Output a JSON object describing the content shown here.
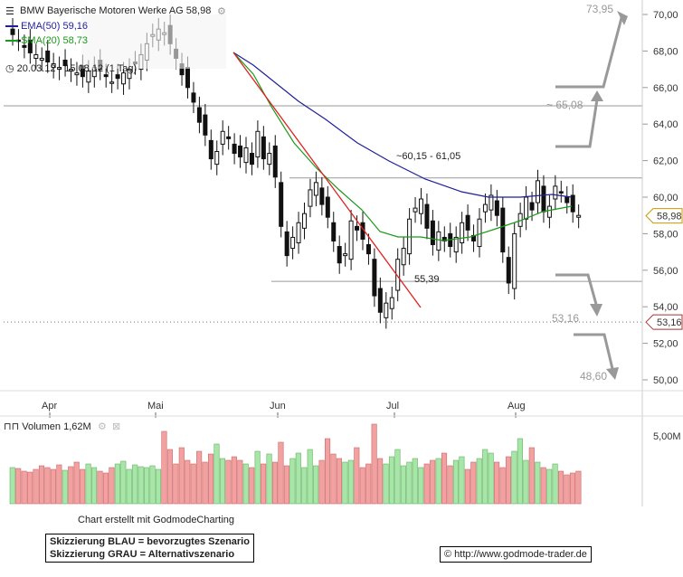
{
  "header": {
    "title": "BMW Bayerische Motoren Werke AG 58,98",
    "ema_label": "EMA(50) 59,16",
    "sma_label": "SMA(20) 58,73",
    "period": "20.03.12 - 15.08.12 (1 Tag)"
  },
  "volume": {
    "label": "Volumen 1,62M",
    "axis_label": "5,00M"
  },
  "footer": {
    "credit": "Chart erstellt mit GodmodeCharting",
    "legend_blue": "Skizzierung BLAU = bevorzugtes Szenario",
    "legend_gray": "Skizzierung GRAU = Alternativszenario",
    "url": "© http://www.godmode-trader.de"
  },
  "colors": {
    "ema": "#1f1f9a",
    "sma": "#1a9a1a",
    "trend": "#e02020",
    "scenario": "#999999",
    "up_volume": "#a6e6a6",
    "down_volume": "#f2a0a0"
  },
  "chart_data": {
    "type": "candlestick",
    "ylim": [
      49,
      71
    ],
    "y_ticks": [
      "70,00",
      "68,00",
      "66,00",
      "64,00",
      "62,00",
      "60,00",
      "58,00",
      "56,00",
      "54,00",
      "52,00",
      "50,00"
    ],
    "x_labels": [
      "Apr",
      "Mai",
      "Jun",
      "Jul",
      "Aug"
    ],
    "current_price": "58,98",
    "marker_price": "53,16",
    "horizontal_levels": [
      65.0,
      61.05,
      55.39
    ],
    "dotted_level": 53.16,
    "annotations": [
      {
        "text": "~60,15 - 61,05"
      },
      {
        "text": "55,39"
      },
      {
        "text": "73,95"
      },
      {
        "text": "~ 65,08"
      },
      {
        "text": "53,16"
      },
      {
        "text": "48,60"
      }
    ],
    "series": [
      {
        "name": "EMA(50) 59,16"
      },
      {
        "name": "SMA(20) 58,73"
      }
    ]
  }
}
